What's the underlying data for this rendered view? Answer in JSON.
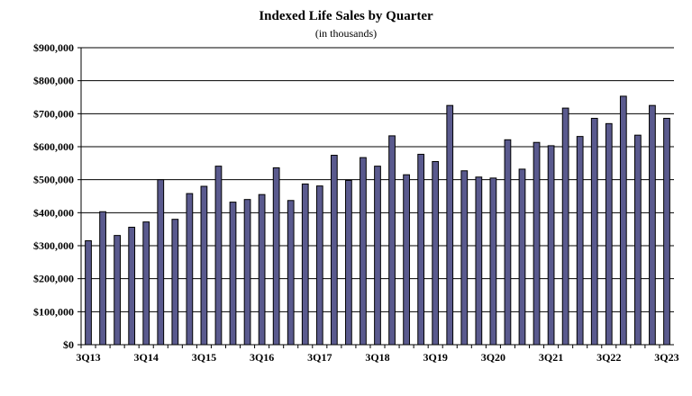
{
  "chart_data": {
    "type": "bar",
    "title": "Indexed Life Sales by Quarter",
    "subtitle": "(in thousands)",
    "xlabel": "",
    "ylabel": "",
    "ylim": [
      0,
      900000
    ],
    "yticks": [
      "$0",
      "$100,000",
      "$200,000",
      "$300,000",
      "$400,000",
      "$500,000",
      "$600,000",
      "$700,000",
      "$800,000",
      "$900,000"
    ],
    "grid": true,
    "legend": "none",
    "bar_color": "#5a5a8e",
    "categories": [
      "3Q13",
      "4Q13",
      "1Q14",
      "2Q14",
      "3Q14",
      "4Q14",
      "1Q15",
      "2Q15",
      "3Q15",
      "4Q15",
      "1Q16",
      "2Q16",
      "3Q16",
      "4Q16",
      "1Q17",
      "2Q17",
      "3Q17",
      "4Q17",
      "1Q18",
      "2Q18",
      "3Q18",
      "4Q18",
      "1Q19",
      "2Q19",
      "3Q19",
      "4Q19",
      "1Q20",
      "2Q20",
      "3Q20",
      "4Q20",
      "1Q21",
      "2Q21",
      "3Q21",
      "4Q21",
      "1Q22",
      "2Q22",
      "3Q22",
      "4Q22",
      "1Q23",
      "2Q23",
      "3Q23"
    ],
    "shown_x_labels": [
      "3Q13",
      "3Q14",
      "3Q15",
      "3Q16",
      "3Q17",
      "3Q18",
      "3Q19",
      "3Q20",
      "3Q21",
      "3Q22",
      "3Q23"
    ],
    "values": [
      315000,
      403000,
      331000,
      356000,
      372000,
      500000,
      380000,
      458000,
      480000,
      541000,
      432000,
      440000,
      455000,
      536000,
      437000,
      487000,
      481000,
      574000,
      498000,
      567000,
      541000,
      633000,
      515000,
      577000,
      555000,
      725000,
      527000,
      508000,
      505000,
      621000,
      532000,
      613000,
      603000,
      717000,
      631000,
      686000,
      670000,
      753000,
      635000,
      725000,
      686000
    ]
  }
}
